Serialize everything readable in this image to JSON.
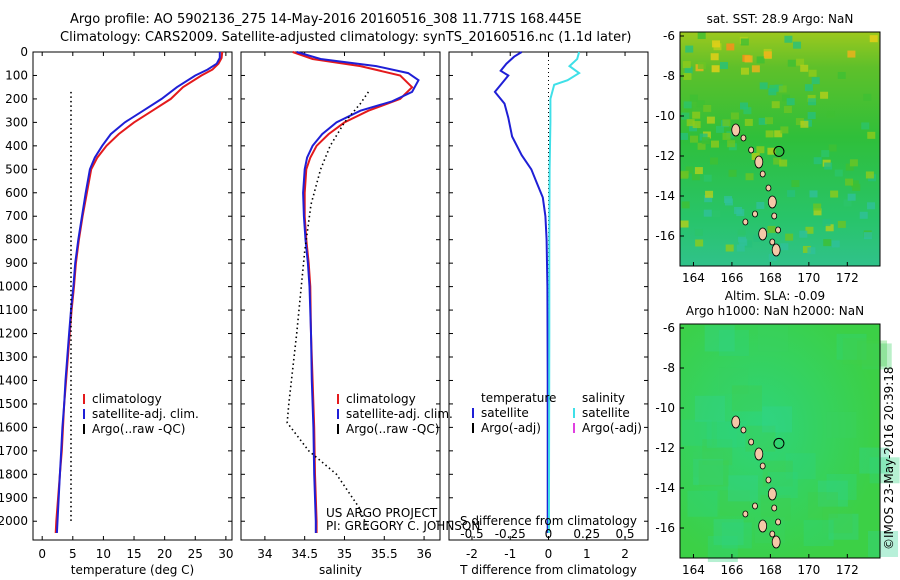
{
  "header": {
    "line1": "Argo profile: AO 5902136_275 14-May-2016 20160516_308 11.771S 168.445E",
    "line2": "Climatology: CARS2009. Satellite-adjusted climatology: synTS_20160516.nc (1.1d later)"
  },
  "side_label": "©IMOS 23-May-2016 20:39:18",
  "colors": {
    "climatology": "#e41a1c",
    "satellite": "#1f1fd6",
    "argo": "#000000",
    "sal_satellite": "#3fe0e8",
    "sal_argo": "#e040e0",
    "land": "#f4c8a8"
  },
  "chart_data": [
    {
      "id": "temperature",
      "type": "line",
      "xlabel": "temperature (deg C)",
      "ylim": [
        2080,
        0
      ],
      "xlim": [
        -1.5,
        31
      ],
      "xticks": [
        0,
        5,
        10,
        15,
        20,
        25,
        30
      ],
      "yticks": [
        0,
        100,
        200,
        300,
        400,
        500,
        600,
        700,
        800,
        900,
        1000,
        1100,
        1200,
        1300,
        1400,
        1500,
        1600,
        1700,
        1800,
        1900,
        2000
      ],
      "legend": [
        "climatology",
        "satellite-adj. clim.",
        "Argo(..raw -QC)"
      ],
      "series": [
        {
          "name": "climatology",
          "color": "#e41a1c",
          "values": [
            [
              29.4,
              0
            ],
            [
              29.3,
              25
            ],
            [
              28.8,
              50
            ],
            [
              27.8,
              75
            ],
            [
              26,
              100
            ],
            [
              23,
              150
            ],
            [
              21,
              200
            ],
            [
              18,
              250
            ],
            [
              15,
              300
            ],
            [
              12.5,
              350
            ],
            [
              10.5,
              400
            ],
            [
              9,
              450
            ],
            [
              8,
              500
            ],
            [
              7.3,
              600
            ],
            [
              6.6,
              700
            ],
            [
              6,
              800
            ],
            [
              5.5,
              900
            ],
            [
              5.2,
              1000
            ],
            [
              4.8,
              1100
            ],
            [
              4.5,
              1200
            ],
            [
              4.2,
              1300
            ],
            [
              3.9,
              1400
            ],
            [
              3.6,
              1500
            ],
            [
              3.4,
              1600
            ],
            [
              3.2,
              1700
            ],
            [
              2.9,
              1800
            ],
            [
              2.6,
              1900
            ],
            [
              2.3,
              2000
            ],
            [
              2.2,
              2050
            ]
          ]
        },
        {
          "name": "satellite-adj. clim.",
          "color": "#1f1fd6",
          "values": [
            [
              29,
              0
            ],
            [
              29,
              25
            ],
            [
              28.5,
              50
            ],
            [
              27,
              75
            ],
            [
              25,
              100
            ],
            [
              22,
              150
            ],
            [
              19.5,
              200
            ],
            [
              16.5,
              250
            ],
            [
              13.5,
              300
            ],
            [
              11.2,
              350
            ],
            [
              9.8,
              400
            ],
            [
              8.6,
              450
            ],
            [
              7.8,
              500
            ],
            [
              7.1,
              600
            ],
            [
              6.5,
              700
            ],
            [
              5.9,
              800
            ],
            [
              5.4,
              900
            ],
            [
              5.1,
              1000
            ],
            [
              4.7,
              1100
            ],
            [
              4.4,
              1200
            ],
            [
              4.1,
              1300
            ],
            [
              3.8,
              1400
            ],
            [
              3.6,
              1500
            ],
            [
              3.3,
              1600
            ],
            [
              3.1,
              1700
            ],
            [
              2.9,
              1800
            ],
            [
              2.7,
              1900
            ],
            [
              2.5,
              2000
            ],
            [
              2.4,
              2050
            ]
          ]
        },
        {
          "name": "Argo(..raw -QC)",
          "color": "#000000",
          "dotted": true,
          "values": [
            [
              4.7,
              170
            ],
            [
              4.7,
              2000
            ]
          ]
        }
      ]
    },
    {
      "id": "salinity",
      "type": "line",
      "xlabel": "salinity",
      "ylim": [
        2080,
        0
      ],
      "xlim": [
        33.7,
        36.2
      ],
      "xticks": [
        34,
        34.5,
        35,
        35.5,
        36
      ],
      "legend": [
        "climatology",
        "satellite-adj. clim.",
        "Argo(..raw -QC)"
      ],
      "annotation": [
        "US ARGO PROJECT",
        "PI: GREGORY C. JOHNSON"
      ],
      "series": [
        {
          "name": "climatology",
          "color": "#e41a1c",
          "values": [
            [
              34.35,
              0
            ],
            [
              34.6,
              30
            ],
            [
              35.2,
              60
            ],
            [
              35.7,
              100
            ],
            [
              35.85,
              150
            ],
            [
              35.7,
              200
            ],
            [
              35.3,
              250
            ],
            [
              35,
              300
            ],
            [
              34.8,
              350
            ],
            [
              34.65,
              400
            ],
            [
              34.57,
              450
            ],
            [
              34.52,
              500
            ],
            [
              34.5,
              600
            ],
            [
              34.5,
              700
            ],
            [
              34.52,
              800
            ],
            [
              34.55,
              900
            ],
            [
              34.57,
              1000
            ],
            [
              34.58,
              1200
            ],
            [
              34.6,
              1400
            ],
            [
              34.62,
              1600
            ],
            [
              34.63,
              1800
            ],
            [
              34.65,
              2000
            ],
            [
              34.65,
              2050
            ]
          ]
        },
        {
          "name": "satellite-adj. clim.",
          "color": "#1f1fd6",
          "values": [
            [
              34.4,
              0
            ],
            [
              34.7,
              30
            ],
            [
              35.4,
              60
            ],
            [
              35.8,
              90
            ],
            [
              35.93,
              120
            ],
            [
              35.85,
              170
            ],
            [
              35.6,
              210
            ],
            [
              35.2,
              250
            ],
            [
              34.9,
              300
            ],
            [
              34.72,
              350
            ],
            [
              34.6,
              400
            ],
            [
              34.53,
              450
            ],
            [
              34.5,
              500
            ],
            [
              34.48,
              600
            ],
            [
              34.49,
              700
            ],
            [
              34.51,
              800
            ],
            [
              34.54,
              900
            ],
            [
              34.56,
              1000
            ],
            [
              34.58,
              1200
            ],
            [
              34.59,
              1400
            ],
            [
              34.61,
              1600
            ],
            [
              34.62,
              1800
            ],
            [
              34.64,
              2000
            ],
            [
              34.64,
              2050
            ]
          ]
        },
        {
          "name": "Argo(..raw -QC)",
          "color": "#000000",
          "dotted": true,
          "values": [
            [
              35.3,
              170
            ],
            [
              35.2,
              220
            ],
            [
              35,
              300
            ],
            [
              34.82,
              400
            ],
            [
              34.7,
              500
            ],
            [
              34.58,
              650
            ],
            [
              34.5,
              850
            ],
            [
              34.4,
              1200
            ],
            [
              34.3,
              1500
            ],
            [
              34.28,
              1580
            ],
            [
              34.55,
              1700
            ],
            [
              34.9,
              1800
            ],
            [
              35.2,
              1950
            ],
            [
              35.3,
              2040
            ]
          ]
        }
      ]
    },
    {
      "id": "differences",
      "type": "line",
      "xlabel_top": "S difference from climatology",
      "xlabel": "T difference from climatology",
      "ylim": [
        2080,
        0
      ],
      "xlim": [
        -2.6,
        2.6
      ],
      "xticks": [
        -2,
        -1,
        0,
        1,
        2
      ],
      "xticks_top": [
        "-0.5",
        "-0.25",
        "0",
        "0.25",
        "0.5"
      ],
      "legend_headers": [
        "temperature",
        "salinity"
      ],
      "legend": [
        "satellite",
        "Argo(-adj)",
        "satellite",
        "Argo(-adj)"
      ],
      "series": [
        {
          "name": "satellite",
          "group": "temperature",
          "color": "#1f1fd6",
          "values": [
            [
              -0.7,
              0
            ],
            [
              -0.9,
              20
            ],
            [
              -1.1,
              50
            ],
            [
              -1.25,
              80
            ],
            [
              -1.05,
              100
            ],
            [
              -1.2,
              130
            ],
            [
              -1.4,
              170
            ],
            [
              -1.15,
              220
            ],
            [
              -1.05,
              280
            ],
            [
              -0.95,
              360
            ],
            [
              -0.7,
              440
            ],
            [
              -0.45,
              500
            ],
            [
              -0.3,
              560
            ],
            [
              -0.15,
              620
            ],
            [
              -0.08,
              700
            ],
            [
              -0.05,
              800
            ],
            [
              -0.03,
              1000
            ],
            [
              -0.02,
              1400
            ],
            [
              -0.02,
              2050
            ]
          ]
        },
        {
          "name": "satellite",
          "group": "salinity",
          "color": "#3fe0e8",
          "values": [
            [
              0.8,
              0
            ],
            [
              0.75,
              30
            ],
            [
              0.55,
              60
            ],
            [
              0.8,
              90
            ],
            [
              0.5,
              120
            ],
            [
              0.15,
              140
            ],
            [
              0.05,
              200
            ],
            [
              0.05,
              300
            ],
            [
              0.03,
              500
            ],
            [
              0.02,
              800
            ],
            [
              0.02,
              1200
            ],
            [
              0.01,
              2050
            ]
          ]
        }
      ]
    }
  ],
  "maps": [
    {
      "id": "sst_map",
      "title": "sat. SST: 28.9 Argo: NaN",
      "xticks": [
        164,
        166,
        168,
        170,
        172
      ],
      "yticks": [
        -6,
        -8,
        -10,
        -12,
        -14,
        -16
      ],
      "xlim": [
        163.3,
        173.7
      ],
      "ylim": [
        -17.5,
        -5.8
      ],
      "argo_position": [
        168.445,
        -11.771
      ]
    },
    {
      "id": "sla_map",
      "title_line1": "Altim. SLA: -0.09",
      "title_line2": "Argo h1000: NaN h2000: NaN",
      "xticks": [
        164,
        166,
        168,
        170,
        172
      ],
      "yticks": [
        -6,
        -8,
        -10,
        -12,
        -14,
        -16
      ],
      "xlim": [
        163.3,
        173.7
      ],
      "ylim": [
        -17.5,
        -5.8
      ],
      "argo_position": [
        168.445,
        -11.771
      ]
    }
  ]
}
